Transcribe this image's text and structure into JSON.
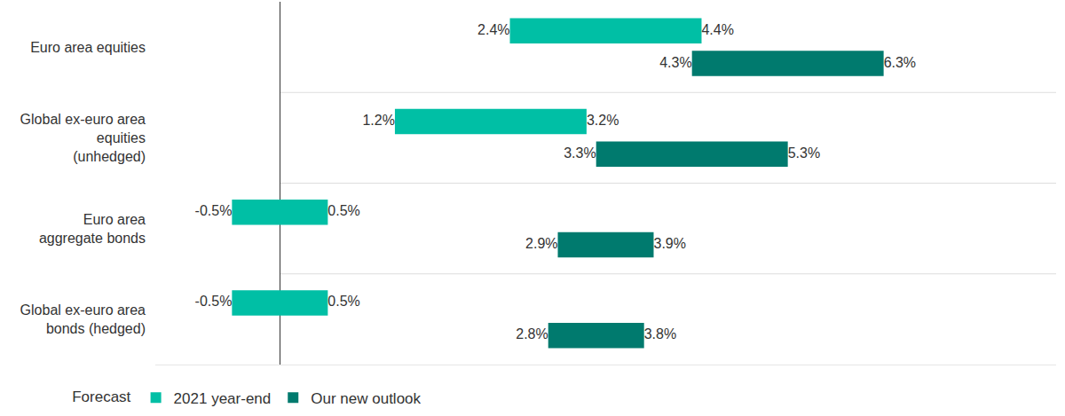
{
  "chart_data": {
    "type": "bar",
    "orientation": "horizontal",
    "categories": [
      "Euro area equities",
      "Global ex-euro area\nequities\n(unhedged)",
      "Euro area\naggregate bonds",
      "Global ex-euro area\nbonds (hedged)"
    ],
    "legend_title": "Forecast",
    "legend": "bottom left",
    "data_labels": true,
    "tick_labels": "y",
    "grid": true,
    "xlim": [
      -1.3,
      8.1
    ],
    "xticks": [
      0
    ],
    "series": [
      {
        "name": "2021 year-end",
        "color": "#00bfa5",
        "low": [
          2.4,
          1.2,
          -0.5,
          -0.5
        ],
        "high": [
          4.4,
          3.2,
          0.5,
          0.5
        ],
        "low_labels": [
          "2.4%",
          "1.2%",
          "-0.5%",
          "-0.5%"
        ],
        "high_labels": [
          "4.4%",
          "3.2%",
          "0.5%",
          "0.5%"
        ]
      },
      {
        "name": "Our new outlook",
        "color": "#007a6e",
        "low": [
          4.3,
          3.3,
          2.9,
          2.8
        ],
        "high": [
          6.3,
          5.3,
          3.9,
          3.8
        ],
        "low_labels": [
          "4.3%",
          "3.3%",
          "2.9%",
          "2.8%"
        ],
        "high_labels": [
          "6.3%",
          "5.3%",
          "3.9%",
          "3.8%"
        ]
      }
    ]
  }
}
